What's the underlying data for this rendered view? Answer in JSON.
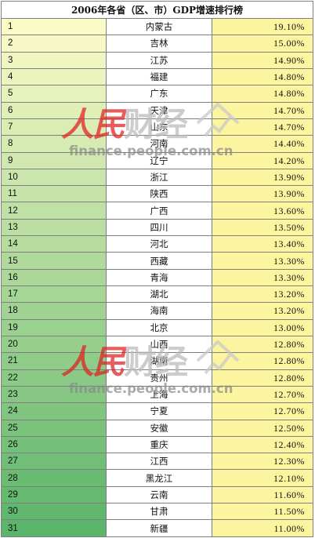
{
  "title": "2006年各省（区、市）GDP增速排行榜",
  "rows": [
    {
      "rank": "1",
      "province": "内蒙古",
      "rate": "19.10%"
    },
    {
      "rank": "2",
      "province": "吉林",
      "rate": "15.00%"
    },
    {
      "rank": "3",
      "province": "江苏",
      "rate": "14.90%"
    },
    {
      "rank": "4",
      "province": "福建",
      "rate": "14.80%"
    },
    {
      "rank": "5",
      "province": "广东",
      "rate": "14.80%"
    },
    {
      "rank": "6",
      "province": "天津",
      "rate": "14.70%"
    },
    {
      "rank": "7",
      "province": "山东",
      "rate": "14.70%"
    },
    {
      "rank": "8",
      "province": "河南",
      "rate": "14.40%"
    },
    {
      "rank": "9",
      "province": "辽宁",
      "rate": "14.20%"
    },
    {
      "rank": "10",
      "province": "浙江",
      "rate": "13.90%"
    },
    {
      "rank": "11",
      "province": "陕西",
      "rate": "13.90%"
    },
    {
      "rank": "12",
      "province": "广西",
      "rate": "13.60%"
    },
    {
      "rank": "13",
      "province": "四川",
      "rate": "13.50%"
    },
    {
      "rank": "14",
      "province": "河北",
      "rate": "13.40%"
    },
    {
      "rank": "15",
      "province": "西藏",
      "rate": "13.30%"
    },
    {
      "rank": "16",
      "province": "青海",
      "rate": "13.30%"
    },
    {
      "rank": "17",
      "province": "湖北",
      "rate": "13.20%"
    },
    {
      "rank": "18",
      "province": "海南",
      "rate": "13.20%"
    },
    {
      "rank": "19",
      "province": "北京",
      "rate": "13.00%"
    },
    {
      "rank": "20",
      "province": "山西",
      "rate": "12.80%"
    },
    {
      "rank": "21",
      "province": "湖南",
      "rate": "12.80%"
    },
    {
      "rank": "22",
      "province": "贵州",
      "rate": "12.80%"
    },
    {
      "rank": "23",
      "province": "上海",
      "rate": "12.70%"
    },
    {
      "rank": "24",
      "province": "宁夏",
      "rate": "12.70%"
    },
    {
      "rank": "25",
      "province": "安徽",
      "rate": "12.50%"
    },
    {
      "rank": "26",
      "province": "重庆",
      "rate": "12.40%"
    },
    {
      "rank": "27",
      "province": "江西",
      "rate": "12.30%"
    },
    {
      "rank": "28",
      "province": "黑龙江",
      "rate": "12.10%"
    },
    {
      "rank": "29",
      "province": "云南",
      "rate": "11.60%"
    },
    {
      "rank": "30",
      "province": "甘肃",
      "rate": "11.50%"
    },
    {
      "rank": "31",
      "province": "新疆",
      "rate": "11.00%"
    }
  ],
  "watermarks": [
    {
      "logo_red": "人民",
      "logo_gray": "财经",
      "url": "finance.people.com.cn"
    },
    {
      "logo_red": "人民",
      "logo_gray": "财经",
      "url": "finance.people.com.cn"
    }
  ],
  "colors": {
    "rank_gradient_top": "#fbfbc8",
    "rank_gradient_bottom": "#5bb56a",
    "rate_fill": "#fdf4a0",
    "grid": "#7f7f7f",
    "watermark_red": "#e02020",
    "watermark_gray": "#8a8a8a"
  }
}
